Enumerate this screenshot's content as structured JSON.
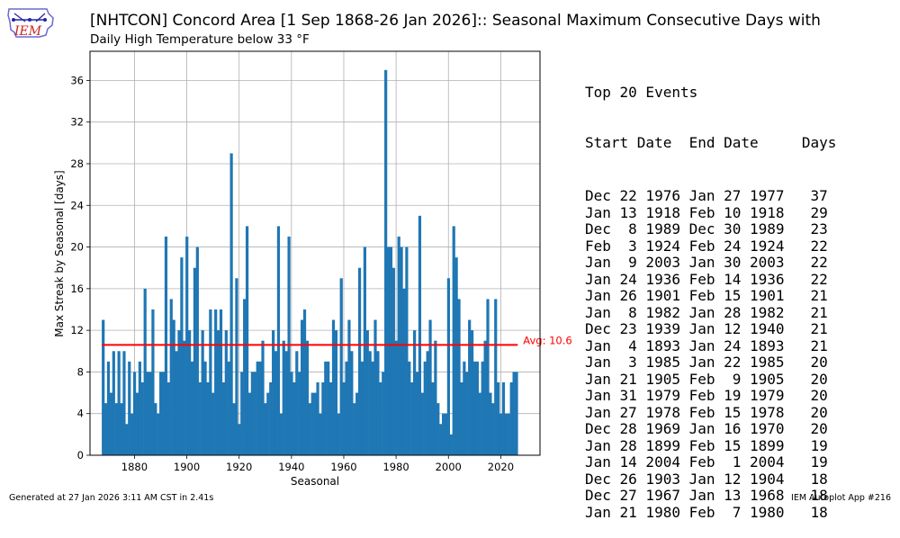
{
  "header": {
    "title": "[NHTCON] Concord Area [1 Sep 1868-26 Jan 2026]:: Seasonal Maximum Consecutive Days with",
    "subtitle": "Daily High Temperature below 33 °F",
    "logo_text": "IEM"
  },
  "chart_data": {
    "type": "bar",
    "xlabel": "Seasonal",
    "ylabel": "Max Streak by Seasonal [days]",
    "xlim": [
      1863,
      2035
    ],
    "ylim": [
      0,
      38.8
    ],
    "xticks": [
      1880,
      1900,
      1920,
      1940,
      1960,
      1980,
      2000,
      2020
    ],
    "yticks": [
      0,
      4,
      8,
      12,
      16,
      20,
      24,
      28,
      32,
      36
    ],
    "grid": true,
    "bar_color": "#1f77b4",
    "average": 10.6,
    "average_label": "Avg: 10.6",
    "average_color": "#ff0000",
    "start_year": 1868,
    "values": [
      13,
      5,
      9,
      6,
      10,
      5,
      10,
      5,
      10,
      3,
      9,
      4,
      8,
      6,
      9,
      7,
      16,
      8,
      8,
      14,
      5,
      4,
      8,
      8,
      21,
      7,
      15,
      13,
      10,
      12,
      19,
      11,
      21,
      12,
      9,
      18,
      20,
      7,
      12,
      9,
      7,
      14,
      6,
      14,
      12,
      14,
      7,
      12,
      9,
      29,
      5,
      17,
      3,
      8,
      15,
      22,
      6,
      8,
      8,
      9,
      9,
      11,
      5,
      6,
      7,
      12,
      10,
      22,
      4,
      11,
      10,
      21,
      8,
      7,
      10,
      8,
      13,
      14,
      11,
      5,
      6,
      6,
      7,
      4,
      7,
      9,
      9,
      7,
      13,
      12,
      4,
      17,
      7,
      9,
      13,
      10,
      5,
      6,
      18,
      9,
      20,
      12,
      10,
      9,
      13,
      10,
      7,
      8,
      37,
      20,
      20,
      18,
      11,
      21,
      20,
      16,
      20,
      9,
      7,
      12,
      8,
      23,
      6,
      9,
      10,
      13,
      7,
      11,
      5,
      3,
      4,
      4,
      17,
      2,
      22,
      19,
      15,
      7,
      9,
      8,
      13,
      12,
      9,
      9,
      6,
      9,
      11,
      15,
      6,
      5,
      15,
      7,
      4,
      7,
      4,
      4,
      7,
      8,
      8
    ]
  },
  "events": {
    "heading": "Top 20 Events",
    "columns": "Start Date  End Date     Days",
    "rows": [
      "Dec 22 1976 Jan 27 1977   37",
      "Jan 13 1918 Feb 10 1918   29",
      "Dec  8 1989 Dec 30 1989   23",
      "Feb  3 1924 Feb 24 1924   22",
      "Jan  9 2003 Jan 30 2003   22",
      "Jan 24 1936 Feb 14 1936   22",
      "Jan 26 1901 Feb 15 1901   21",
      "Jan  8 1982 Jan 28 1982   21",
      "Dec 23 1939 Jan 12 1940   21",
      "Jan  4 1893 Jan 24 1893   21",
      "Jan  3 1985 Jan 22 1985   20",
      "Jan 21 1905 Feb  9 1905   20",
      "Jan 31 1979 Feb 19 1979   20",
      "Jan 27 1978 Feb 15 1978   20",
      "Dec 28 1969 Jan 16 1970   20",
      "Jan 28 1899 Feb 15 1899   19",
      "Jan 14 2004 Feb  1 2004   19",
      "Dec 26 1903 Jan 12 1904   18",
      "Dec 27 1967 Jan 13 1968   18",
      "Jan 21 1980 Feb  7 1980   18"
    ]
  },
  "footer": {
    "generated": "Generated at 27 Jan 2026 3:11 AM CST in 2.41s",
    "app": "IEM Autoplot App #216"
  }
}
